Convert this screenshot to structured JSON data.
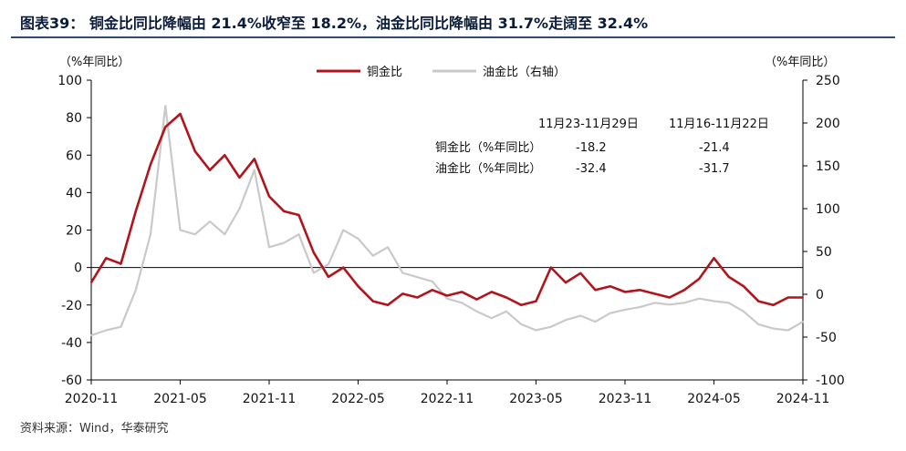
{
  "title": "图表39： 铜金比同比降幅由 21.4%收窄至 18.2%，油金比同比降幅由 31.7%走阔至 32.4%",
  "source": "资料来源：Wind，华泰研究",
  "colors": {
    "copper": "#b2141c",
    "oil": "#c9c9c9",
    "rule": "#2f4a7a"
  },
  "chart_data": {
    "type": "line",
    "left_axis_label": "（%年同比）",
    "right_axis_label": "（%年同比）",
    "ylim_left": [
      -60,
      100
    ],
    "yticks_left": [
      100,
      80,
      60,
      40,
      20,
      0,
      -20,
      -40,
      -60
    ],
    "ylim_right": [
      -100,
      250
    ],
    "yticks_right": [
      250,
      200,
      150,
      100,
      50,
      0,
      -50,
      -100
    ],
    "x_ticks": [
      "2020-11",
      "2021-05",
      "2021-11",
      "2022-05",
      "2022-11",
      "2023-05",
      "2023-11",
      "2024-05",
      "2024-11"
    ],
    "x_range": [
      "2020-11",
      "2024-11"
    ],
    "legend": {
      "position": "top-center",
      "items": [
        "铜金比",
        "油金比（右轴）"
      ]
    },
    "series": [
      {
        "name": "铜金比",
        "axis": "left",
        "x": [
          "2020-11",
          "2020-12",
          "2021-01",
          "2021-02",
          "2021-03",
          "2021-04",
          "2021-05",
          "2021-06",
          "2021-07",
          "2021-08",
          "2021-09",
          "2021-10",
          "2021-11",
          "2021-12",
          "2022-01",
          "2022-02",
          "2022-03",
          "2022-04",
          "2022-05",
          "2022-06",
          "2022-07",
          "2022-08",
          "2022-09",
          "2022-10",
          "2022-11",
          "2022-12",
          "2023-01",
          "2023-02",
          "2023-03",
          "2023-04",
          "2023-05",
          "2023-06",
          "2023-07",
          "2023-08",
          "2023-09",
          "2023-10",
          "2023-11",
          "2023-12",
          "2024-01",
          "2024-02",
          "2024-03",
          "2024-04",
          "2024-05",
          "2024-06",
          "2024-07",
          "2024-08",
          "2024-09",
          "2024-10",
          "2024-11"
        ],
        "values": [
          -8,
          5,
          2,
          30,
          55,
          75,
          82,
          62,
          52,
          60,
          48,
          58,
          38,
          30,
          28,
          8,
          -5,
          0,
          -10,
          -18,
          -20,
          -14,
          -16,
          -12,
          -15,
          -13,
          -17,
          -13,
          -16,
          -20,
          -18,
          0,
          -8,
          -3,
          -12,
          -10,
          -13,
          -12,
          -14,
          -16,
          -12,
          -6,
          5,
          -5,
          -10,
          -18,
          -20,
          -16,
          -16
        ]
      },
      {
        "name": "油金比（右轴）",
        "axis": "right",
        "x": [
          "2020-11",
          "2020-12",
          "2021-01",
          "2021-02",
          "2021-03",
          "2021-04",
          "2021-05",
          "2021-06",
          "2021-07",
          "2021-08",
          "2021-09",
          "2021-10",
          "2021-11",
          "2021-12",
          "2022-01",
          "2022-02",
          "2022-03",
          "2022-04",
          "2022-05",
          "2022-06",
          "2022-07",
          "2022-08",
          "2022-09",
          "2022-10",
          "2022-11",
          "2022-12",
          "2023-01",
          "2023-02",
          "2023-03",
          "2023-04",
          "2023-05",
          "2023-06",
          "2023-07",
          "2023-08",
          "2023-09",
          "2023-10",
          "2023-11",
          "2023-12",
          "2024-01",
          "2024-02",
          "2024-03",
          "2024-04",
          "2024-05",
          "2024-06",
          "2024-07",
          "2024-08",
          "2024-09",
          "2024-10",
          "2024-11"
        ],
        "values": [
          -48,
          -42,
          -38,
          5,
          70,
          220,
          75,
          70,
          85,
          70,
          100,
          145,
          55,
          60,
          70,
          25,
          35,
          75,
          65,
          45,
          55,
          25,
          20,
          15,
          -5,
          -10,
          -20,
          -28,
          -20,
          -35,
          -42,
          -38,
          -30,
          -25,
          -32,
          -22,
          -18,
          -15,
          -10,
          -12,
          -10,
          -5,
          -8,
          -10,
          -20,
          -35,
          -40,
          -42,
          -32
        ]
      }
    ],
    "table": {
      "headers": [
        "11月23-11月29日",
        "11月16-11月22日"
      ],
      "rows": [
        {
          "label": "铜金比（%年同比）",
          "values": [
            "-18.2",
            "-21.4"
          ]
        },
        {
          "label": "油金比（%年同比）",
          "values": [
            "-32.4",
            "-31.7"
          ]
        }
      ]
    }
  }
}
